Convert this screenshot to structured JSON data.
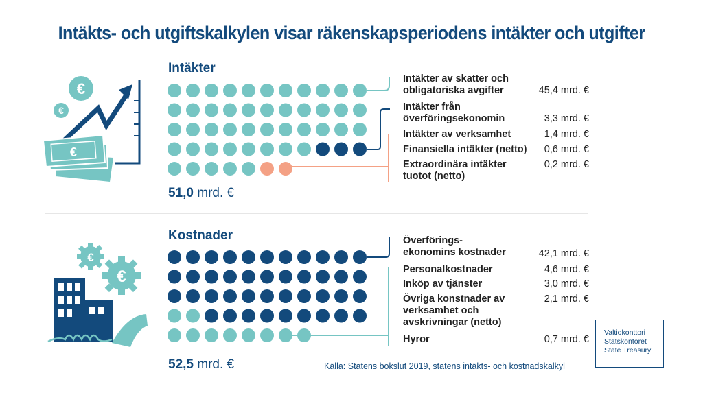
{
  "title": "Intäkts- och utgiftskalkylen visar räkenskapsperiodens intäkter och utgifter",
  "colors": {
    "navy": "#134a7c",
    "teal": "#76c5c3",
    "salmon": "#f4a185",
    "divider": "#e6e6e6"
  },
  "income": {
    "heading": "Intäkter",
    "total_value": "51,0",
    "total_unit": "mrd. €",
    "items": [
      {
        "label_lines": [
          "Intäkter av skatter och",
          "obligatoriska avgifter"
        ],
        "value": "45,4 mrd. €"
      },
      {
        "label_lines": [
          "Intäkter från",
          "överföringsekonomin"
        ],
        "value": "3,3 mrd. €"
      },
      {
        "label_lines": [
          "Intäkter av verksamhet"
        ],
        "value": "1,4 mrd. €"
      },
      {
        "label_lines": [
          "Finansiella intäkter (netto)"
        ],
        "value": "0,6 mrd. €"
      },
      {
        "label_lines": [
          "Extraordinära intäkter",
          "tuotot (netto)"
        ],
        "value": "0,2 mrd. €"
      }
    ]
  },
  "costs": {
    "heading": "Kostnader",
    "total_value": "52,5",
    "total_unit": "mrd. €",
    "items": [
      {
        "label_lines": [
          "Överförings-",
          "ekonomins kostnader"
        ],
        "value": "42,1 mrd. €"
      },
      {
        "label_lines": [
          "Personalkostnader"
        ],
        "value": "4,6 mrd. €"
      },
      {
        "label_lines": [
          "Inköp av tjänster"
        ],
        "value": "3,0 mrd. €"
      },
      {
        "label_lines": [
          "Övriga konstnader av",
          "verksamhet och",
          "avskrivningar (netto)"
        ],
        "value": "2,1 mrd. €"
      },
      {
        "label_lines": [
          "Hyror"
        ],
        "value": "0,7 mrd. €"
      }
    ]
  },
  "source": "Källa: Statens bokslut 2019, statens intäkts- och kostnadskalkyl",
  "logo_lines": [
    "Valtiokonttori",
    "Statskontoret",
    "State Treasury"
  ],
  "icons": {
    "income": "money-growth-chart-icon",
    "costs": "office-building-gears-phone-icon"
  },
  "chart_data": [
    {
      "type": "dot-matrix",
      "title": "Intäkter",
      "unit": "mrd. €",
      "total": 51.0,
      "dots_per_row": 11,
      "series": [
        {
          "name": "Intäkter av skatter och obligatoriska avgifter",
          "value": 45.4,
          "dots": 46,
          "color": "teal"
        },
        {
          "name": "Intäkter från överföringsekonomin",
          "value": 3.3,
          "dots": 3,
          "color": "navy"
        },
        {
          "name": "Intäkter av verksamhet",
          "value": 1.4,
          "dots": 0,
          "color": "salmon"
        },
        {
          "name": "Finansiella intäkter (netto)",
          "value": 0.6,
          "dots": 0,
          "color": "salmon"
        },
        {
          "name": "Extraordinära intäkter tuotot (netto)",
          "value": 0.2,
          "dots": 0,
          "color": "salmon"
        }
      ],
      "grouped_dots": [
        {
          "group": "teal",
          "count": 38
        },
        {
          "group": "navy",
          "count": 3
        },
        {
          "group": "teal-row5",
          "count": 5
        },
        {
          "group": "salmon",
          "count": 2
        }
      ],
      "dot_sequence": [
        "teal:41",
        "navy:3",
        "teal:5",
        "salmon:2"
      ]
    },
    {
      "type": "dot-matrix",
      "title": "Kostnader",
      "unit": "mrd. €",
      "total": 52.5,
      "dots_per_row": 11,
      "series": [
        {
          "name": "Överföringsekonomins kostnader",
          "value": 42.1,
          "color": "navy"
        },
        {
          "name": "Personalkostnader",
          "value": 4.6,
          "color": "teal"
        },
        {
          "name": "Inköp av tjänster",
          "value": 3.0,
          "color": "teal"
        },
        {
          "name": "Övriga konstnader av verksamhet och avskrivningar (netto)",
          "value": 2.1,
          "color": "teal"
        },
        {
          "name": "Hyror",
          "value": 0.7,
          "color": "teal"
        }
      ],
      "dot_sequence": [
        "navy:33",
        "teal:2",
        "navy:9",
        "teal:8"
      ]
    }
  ]
}
